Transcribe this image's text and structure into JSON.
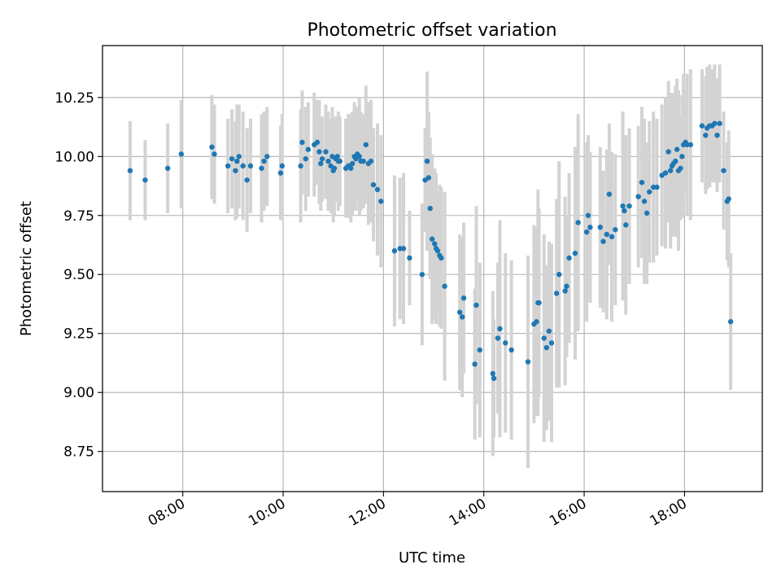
{
  "chart_data": {
    "type": "scatter",
    "title": "Photometric offset variation",
    "xlabel": "UTC time",
    "ylabel": "Photometric offset",
    "x_unit": "hours UTC",
    "xlim": [
      6.4,
      19.55
    ],
    "ylim": [
      8.58,
      10.47
    ],
    "xticks": [
      8,
      10,
      12,
      14,
      16,
      18
    ],
    "xtick_labels": [
      "08:00",
      "10:00",
      "12:00",
      "14:00",
      "16:00",
      "18:00"
    ],
    "yticks": [
      8.75,
      9.0,
      9.25,
      9.5,
      9.75,
      10.0,
      10.25
    ],
    "ytick_labels": [
      "8.75",
      "9.00",
      "9.25",
      "9.50",
      "9.75",
      "10.00",
      "10.25"
    ],
    "grid": true,
    "marker_color": "#1f77b4",
    "errorbar_color": "#d3d3d3",
    "series": [
      {
        "x": [
          6.95,
          7.25,
          7.7,
          7.97,
          8.58,
          8.63,
          8.9,
          8.98,
          9.05,
          9.08,
          9.12,
          9.2,
          9.28,
          9.35,
          9.57,
          9.62,
          9.68,
          9.95,
          9.98,
          10.35,
          10.38,
          10.45,
          10.5,
          10.62,
          10.68,
          10.72,
          10.75,
          10.78,
          10.85,
          10.9,
          10.95,
          10.98,
          11.0,
          11.02,
          11.05,
          11.08,
          11.1,
          11.13,
          11.25,
          11.3,
          11.35,
          11.38,
          11.42,
          11.45,
          11.48,
          11.52,
          11.55,
          11.6,
          11.65,
          11.7,
          11.75,
          11.8,
          11.88,
          11.95,
          12.22,
          12.33,
          12.4,
          12.52,
          12.77,
          12.83,
          12.87,
          12.9,
          12.93,
          12.97,
          13.02,
          13.05,
          13.08,
          13.12,
          13.15,
          13.22,
          13.52,
          13.57,
          13.6,
          13.82,
          13.85,
          13.92,
          14.18,
          14.2,
          14.28,
          14.32,
          14.43,
          14.55,
          14.88,
          15.0,
          15.05,
          15.08,
          15.1,
          15.2,
          15.25,
          15.3,
          15.35,
          15.45,
          15.5,
          15.62,
          15.65,
          15.7,
          15.82,
          15.88,
          16.05,
          16.08,
          16.12,
          16.32,
          16.38,
          16.45,
          16.5,
          16.55,
          16.62,
          16.77,
          16.8,
          16.83,
          16.9,
          17.08,
          17.15,
          17.2,
          17.25,
          17.3,
          17.38,
          17.45,
          17.55,
          17.62,
          17.68,
          17.72,
          17.75,
          17.78,
          17.82,
          17.85,
          17.88,
          17.92,
          17.95,
          17.98,
          18.02,
          18.05,
          18.12,
          18.35,
          18.42,
          18.45,
          18.5,
          18.55,
          18.6,
          18.65,
          18.7,
          18.78,
          18.85,
          18.88,
          18.92
        ],
        "y": [
          9.94,
          9.9,
          9.95,
          10.01,
          10.04,
          10.01,
          9.96,
          9.99,
          9.94,
          9.98,
          10.0,
          9.96,
          9.9,
          9.96,
          9.95,
          9.98,
          10.0,
          9.93,
          9.96,
          9.96,
          10.06,
          9.99,
          10.03,
          10.05,
          10.06,
          10.02,
          9.97,
          9.99,
          10.02,
          9.98,
          9.96,
          10.0,
          9.94,
          9.95,
          9.99,
          10.0,
          9.98,
          9.98,
          9.95,
          9.96,
          9.95,
          9.97,
          10.0,
          9.99,
          10.01,
          10.0,
          9.98,
          9.98,
          10.05,
          9.97,
          9.98,
          9.88,
          9.86,
          9.81,
          9.6,
          9.61,
          9.61,
          9.57,
          9.5,
          9.9,
          9.98,
          9.91,
          9.78,
          9.65,
          9.63,
          9.61,
          9.6,
          9.58,
          9.57,
          9.45,
          9.34,
          9.32,
          9.4,
          9.12,
          9.37,
          9.18,
          9.08,
          9.06,
          9.23,
          9.27,
          9.21,
          9.18,
          9.13,
          9.29,
          9.3,
          9.38,
          9.38,
          9.23,
          9.19,
          9.26,
          9.21,
          9.42,
          9.5,
          9.43,
          9.45,
          9.57,
          9.59,
          9.72,
          9.68,
          9.75,
          9.7,
          9.7,
          9.64,
          9.67,
          9.84,
          9.66,
          9.69,
          9.79,
          9.77,
          9.71,
          9.79,
          9.83,
          9.89,
          9.81,
          9.76,
          9.85,
          9.87,
          9.87,
          9.92,
          9.93,
          10.02,
          9.94,
          9.96,
          9.97,
          9.98,
          10.03,
          9.94,
          9.95,
          10.0,
          10.05,
          10.06,
          10.05,
          10.05,
          10.13,
          10.09,
          10.12,
          10.13,
          10.13,
          10.14,
          10.09,
          10.14,
          9.94,
          9.81,
          9.82,
          9.3
        ],
        "err": [
          0.21,
          0.17,
          0.19,
          0.23,
          0.22,
          0.21,
          0.2,
          0.21,
          0.21,
          0.24,
          0.22,
          0.23,
          0.22,
          0.2,
          0.23,
          0.21,
          0.21,
          0.2,
          0.22,
          0.24,
          0.22,
          0.22,
          0.2,
          0.22,
          0.18,
          0.22,
          0.2,
          0.18,
          0.2,
          0.21,
          0.2,
          0.21,
          0.22,
          0.2,
          0.18,
          0.17,
          0.21,
          0.19,
          0.21,
          0.22,
          0.23,
          0.22,
          0.23,
          0.22,
          0.19,
          0.25,
          0.21,
          0.2,
          0.25,
          0.26,
          0.26,
          0.24,
          0.28,
          0.28,
          0.32,
          0.3,
          0.32,
          0.2,
          0.3,
          0.22,
          0.38,
          0.28,
          0.3,
          0.36,
          0.32,
          0.32,
          0.25,
          0.3,
          0.3,
          0.4,
          0.33,
          0.34,
          0.32,
          0.32,
          0.42,
          0.37,
          0.35,
          0.25,
          0.32,
          0.46,
          0.38,
          0.38,
          0.45,
          0.42,
          0.4,
          0.48,
          0.4,
          0.44,
          0.35,
          0.38,
          0.42,
          0.4,
          0.48,
          0.4,
          0.3,
          0.36,
          0.45,
          0.46,
          0.38,
          0.34,
          0.32,
          0.34,
          0.3,
          0.36,
          0.3,
          0.36,
          0.32,
          0.4,
          0.3,
          0.38,
          0.33,
          0.3,
          0.32,
          0.35,
          0.3,
          0.3,
          0.32,
          0.29,
          0.3,
          0.32,
          0.3,
          0.33,
          0.3,
          0.3,
          0.32,
          0.3,
          0.34,
          0.22,
          0.26,
          0.3,
          0.22,
          0.3,
          0.32,
          0.24,
          0.25,
          0.26,
          0.26,
          0.24,
          0.25,
          0.24,
          0.25,
          0.25,
          0.25,
          0.29,
          0.29
        ]
      }
    ]
  }
}
